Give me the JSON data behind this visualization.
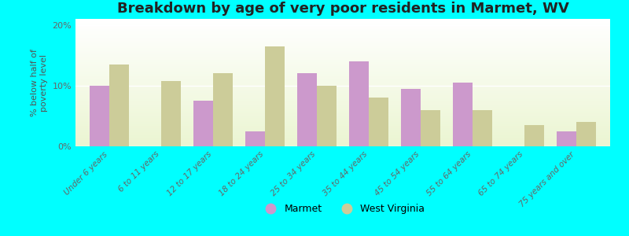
{
  "title": "Breakdown by age of very poor residents in Marmet, WV",
  "ylabel": "% below half of\npoverty level",
  "categories": [
    "Under 6 years",
    "6 to 11 years",
    "12 to 17 years",
    "18 to 24 years",
    "25 to 34 years",
    "35 to 44 years",
    "45 to 54 years",
    "55 to 64 years",
    "65 to 74 years",
    "75 years and over"
  ],
  "marmet_values": [
    10.0,
    0,
    7.5,
    2.5,
    12.0,
    14.0,
    9.5,
    10.5,
    0,
    2.5
  ],
  "wv_values": [
    13.5,
    10.8,
    12.0,
    16.5,
    10.0,
    8.0,
    6.0,
    6.0,
    3.5,
    4.0
  ],
  "marmet_color": "#cc99cc",
  "wv_color": "#cccc99",
  "background_color": "#00ffff",
  "ylim": [
    0,
    21
  ],
  "yticks": [
    0,
    10,
    20
  ],
  "ytick_labels": [
    "0%",
    "10%",
    "20%"
  ],
  "legend_marmet": "Marmet",
  "legend_wv": "West Virginia",
  "title_fontsize": 13,
  "axis_label_fontsize": 8,
  "tick_fontsize": 7.5,
  "bar_width": 0.38
}
